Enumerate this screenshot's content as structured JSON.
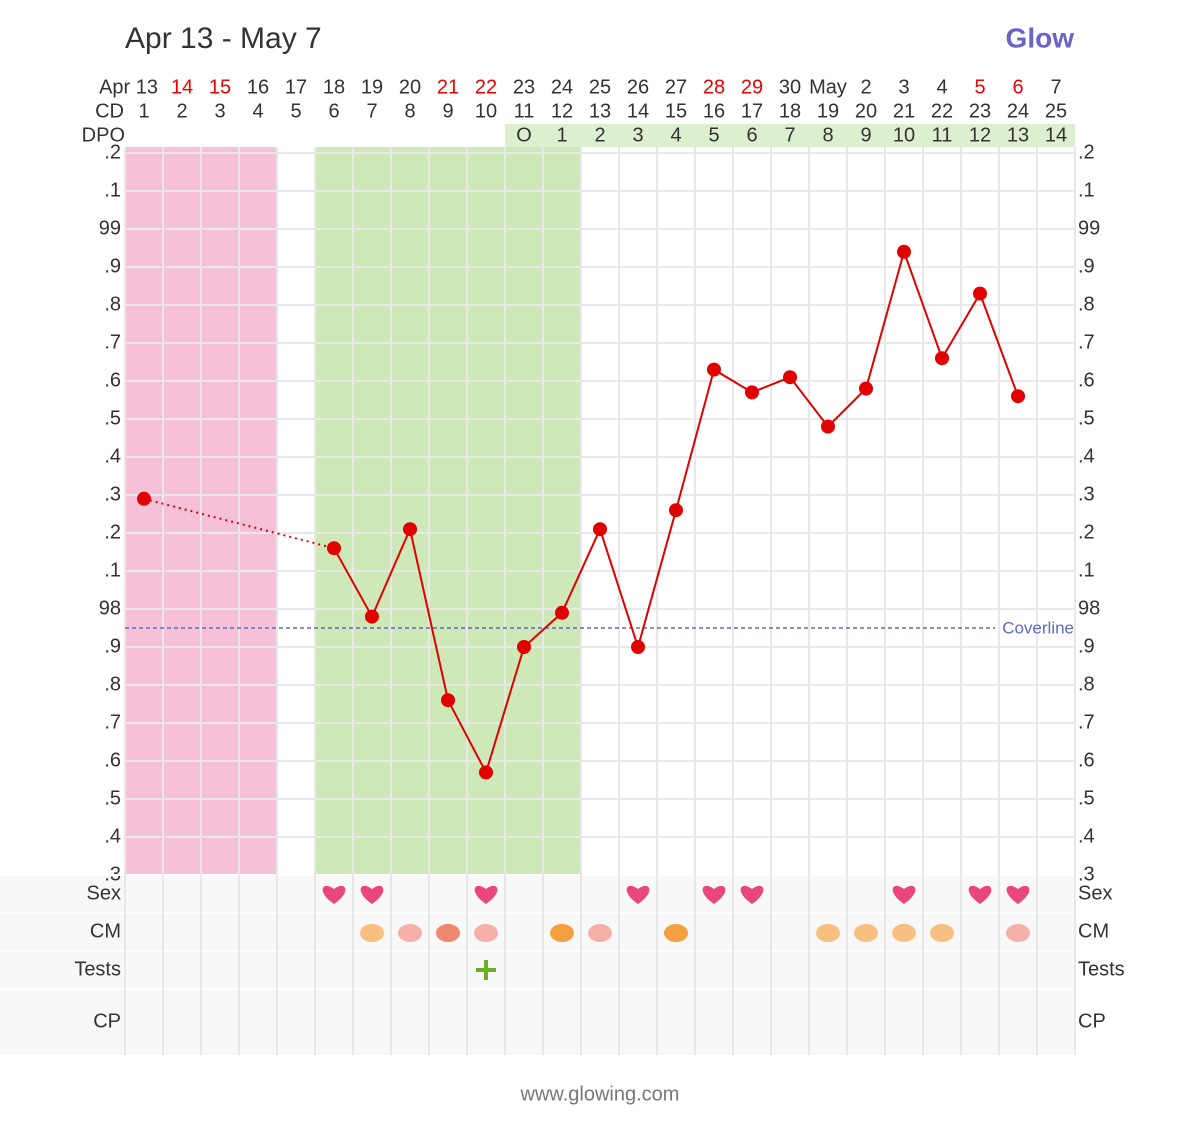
{
  "chart_data": {
    "type": "line",
    "title": "Apr 13 - May 7",
    "logo": "Glow",
    "footer": "www.glowing.com",
    "categories": [
      "Apr 13",
      "14",
      "15",
      "16",
      "17",
      "18",
      "19",
      "20",
      "21",
      "22",
      "23",
      "24",
      "25",
      "26",
      "27",
      "28",
      "29",
      "30",
      "May",
      "2",
      "3",
      "4",
      "5",
      "6",
      "7"
    ],
    "category_colors": [
      "#333",
      "#e00",
      "#e00",
      "#333",
      "#333",
      "#333",
      "#333",
      "#333",
      "#e00",
      "#e00",
      "#333",
      "#333",
      "#333",
      "#333",
      "#333",
      "#e00",
      "#e00",
      "#333",
      "#333",
      "#333",
      "#333",
      "#333",
      "#e00",
      "#e00",
      "#333"
    ],
    "cd_label": "CD",
    "cd": [
      1,
      2,
      3,
      4,
      5,
      6,
      7,
      8,
      9,
      10,
      11,
      12,
      13,
      14,
      15,
      16,
      17,
      18,
      19,
      20,
      21,
      22,
      23,
      24,
      25
    ],
    "dpo_label": "DPO",
    "dpo": [
      null,
      null,
      null,
      null,
      null,
      null,
      null,
      null,
      null,
      null,
      "O",
      1,
      2,
      3,
      4,
      5,
      6,
      7,
      8,
      9,
      10,
      11,
      12,
      13,
      14
    ],
    "dpo_color": "#dcf0d0",
    "series": [
      {
        "color": "#e00000",
        "values": [
          98.29,
          null,
          null,
          null,
          null,
          98.16,
          97.98,
          98.21,
          97.76,
          97.57,
          97.9,
          97.99,
          98.21,
          97.9,
          98.26,
          98.63,
          98.57,
          98.61,
          98.48,
          98.58,
          98.94,
          98.66,
          98.83,
          98.56,
          null
        ]
      }
    ],
    "ylim": [
      97.3,
      99.2
    ],
    "yticks": [
      {
        "value": 97.3,
        "label": ".3"
      },
      {
        "value": 97.4,
        "label": ".4"
      },
      {
        "value": 97.5,
        "label": ".5"
      },
      {
        "value": 97.6,
        "label": ".6"
      },
      {
        "value": 97.7,
        "label": ".7"
      },
      {
        "value": 97.8,
        "label": ".8"
      },
      {
        "value": 97.9,
        "label": ".9"
      },
      98,
      {
        "value": 98.1,
        "label": ".1"
      },
      {
        "value": 98.2,
        "label": ".2"
      },
      {
        "value": 98.3,
        "label": ".3"
      },
      {
        "value": 98.4,
        "label": ".4"
      },
      {
        "value": 98.5,
        "label": ".5"
      },
      {
        "value": 98.6,
        "label": ".6"
      },
      {
        "value": 98.7,
        "label": ".7"
      },
      {
        "value": 98.8,
        "label": ".8"
      },
      {
        "value": 98.9,
        "label": ".9"
      },
      99,
      {
        "value": 99.1,
        "label": ".1"
      },
      {
        "value": 99.2,
        "label": ".2"
      }
    ],
    "grid": true,
    "coverline": {
      "value": 97.95,
      "label": "Coverline",
      "color": "#5c6bc0"
    },
    "period": {
      "start": 1,
      "end": 4,
      "color": "#f5c0d8"
    },
    "fertile_window": {
      "start": 6,
      "end": 12,
      "color": "#cfe8b8"
    },
    "rows": [
      {
        "label": "Sex",
        "marks": [
          {
            "day": 6,
            "color": "#e8467c"
          },
          {
            "day": 7,
            "color": "#e8467c"
          },
          {
            "day": 10,
            "color": "#e8467c"
          },
          {
            "day": 14,
            "color": "#e8467c"
          },
          {
            "day": 16,
            "color": "#e8467c"
          },
          {
            "day": 17,
            "color": "#e8467c"
          },
          {
            "day": 21,
            "color": "#e8467c"
          },
          {
            "day": 23,
            "color": "#e8467c"
          },
          {
            "day": 24,
            "color": "#e8467c"
          }
        ]
      },
      {
        "label": "CM",
        "marks": [
          {
            "day": 7,
            "color": "#f8c080"
          },
          {
            "day": 8,
            "color": "#f5b0a8"
          },
          {
            "day": 9,
            "color": "#ef8870"
          },
          {
            "day": 10,
            "color": "#f5b0a8"
          },
          {
            "day": 12,
            "color": "#f5a040"
          },
          {
            "day": 13,
            "color": "#f5b0a8"
          },
          {
            "day": 15,
            "color": "#f5a040"
          },
          {
            "day": 19,
            "color": "#f8c080"
          },
          {
            "day": 20,
            "color": "#f8c080"
          },
          {
            "day": 21,
            "color": "#f8c080"
          },
          {
            "day": 22,
            "color": "#f8c080"
          },
          {
            "day": 24,
            "color": "#f5b0a8"
          }
        ]
      },
      {
        "label": "Tests",
        "marks": [
          {
            "day": 10,
            "color": "#6ab023"
          }
        ]
      },
      {
        "label": "CP",
        "marks": []
      }
    ]
  }
}
